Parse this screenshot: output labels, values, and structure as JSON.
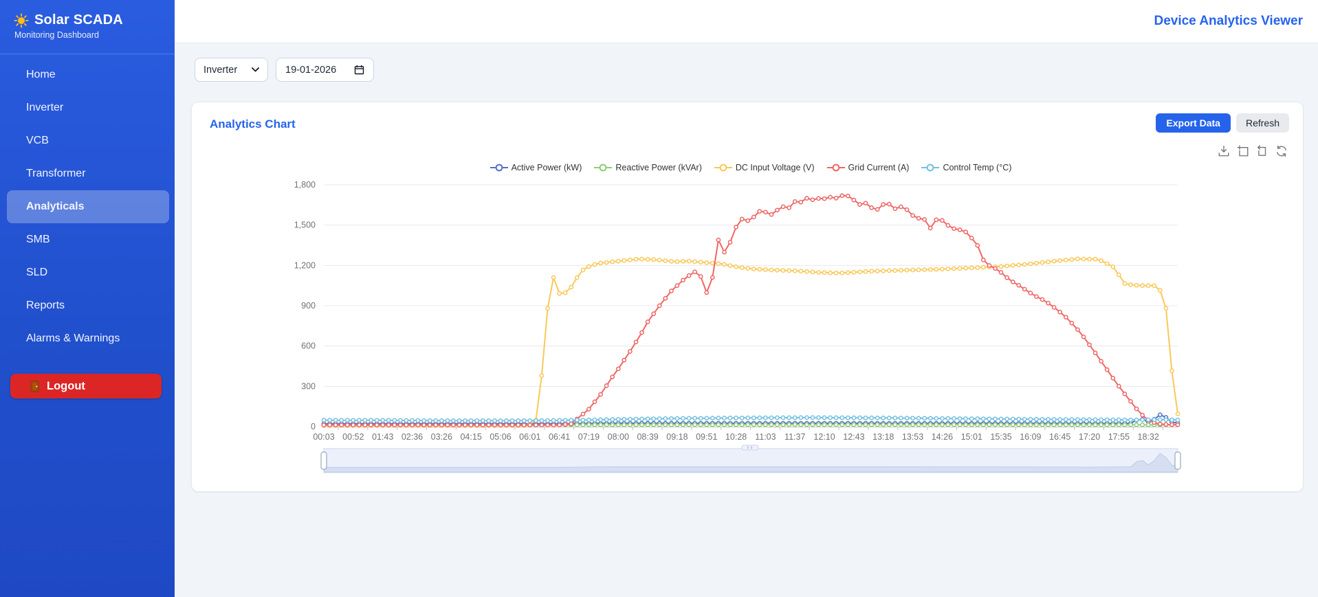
{
  "brand": {
    "title": "Solar SCADA",
    "subtitle": "Monitoring Dashboard",
    "logo_icon": "sun-icon"
  },
  "header": {
    "title": "Device Analytics Viewer"
  },
  "sidebar": {
    "items": [
      {
        "label": "Home"
      },
      {
        "label": "Inverter"
      },
      {
        "label": "VCB"
      },
      {
        "label": "Transformer"
      },
      {
        "label": "Analyticals"
      },
      {
        "label": "SMB"
      },
      {
        "label": "SLD"
      },
      {
        "label": "Reports"
      },
      {
        "label": "Alarms & Warnings"
      }
    ],
    "active_item": "Analyticals",
    "logout": {
      "label": "Logout",
      "icon": "door-icon",
      "color": "#dc2626"
    }
  },
  "filters": {
    "device_select": {
      "value": "Inverter",
      "icon": "chevron-down-icon"
    },
    "date_input": {
      "value": "19-01-2026",
      "icon": "calendar-icon"
    }
  },
  "card": {
    "title": "Analytics Chart",
    "export_button": "Export Data",
    "refresh_button": "Refresh",
    "toolbox_icons": [
      "save-image-icon",
      "zoom-select-icon",
      "zoom-reset-icon",
      "restore-icon"
    ],
    "accent_color": "#2563eb"
  },
  "chart_data": {
    "type": "line",
    "title": "",
    "xlabel": "",
    "ylabel": "",
    "ylim": [
      0,
      1800
    ],
    "y_ticks": [
      0,
      300,
      600,
      900,
      1200,
      1500,
      1800
    ],
    "y_tick_labels": [
      "0",
      "300",
      "600",
      "900",
      "1,200",
      "1,500",
      "1,800"
    ],
    "x_tick_labels": [
      "00:03",
      "00:52",
      "01:43",
      "02:36",
      "03:26",
      "04:15",
      "05:06",
      "06:01",
      "06:41",
      "07:19",
      "08:00",
      "08:39",
      "09:18",
      "09:51",
      "10:28",
      "11:03",
      "11:37",
      "12:10",
      "12:43",
      "13:18",
      "13:53",
      "14:26",
      "15:01",
      "15:35",
      "16:09",
      "16:45",
      "17:20",
      "17:55",
      "18:32"
    ],
    "grid": true,
    "legend_position": "top",
    "points_per_label_interval": 5,
    "marker": "hollow-circle",
    "datazoom_slider": {
      "present": true,
      "range": "full",
      "shadow_series": "Active Power (kW)"
    },
    "series": [
      {
        "name": "Active Power (kW)",
        "color": "#5470c6",
        "keypoints": [
          [
            0,
            22
          ],
          [
            7,
            22
          ],
          [
            8,
            22
          ],
          [
            10,
            25
          ],
          [
            14,
            25
          ],
          [
            18,
            25
          ],
          [
            22,
            24
          ],
          [
            26,
            23
          ],
          [
            27.4,
            24
          ],
          [
            27.55,
            28
          ],
          [
            27.7,
            88
          ],
          [
            27.85,
            38
          ],
          [
            28.0,
            34
          ],
          [
            28.15,
            36
          ],
          [
            28.3,
            90
          ],
          [
            28.55,
            86
          ],
          [
            28.7,
            34
          ],
          [
            29,
            28
          ]
        ]
      },
      {
        "name": "Reactive Power (kVAr)",
        "color": "#91cc75",
        "keypoints": [
          [
            0,
            10
          ],
          [
            7,
            10
          ],
          [
            8,
            11
          ],
          [
            8.3,
            13
          ],
          [
            12,
            14
          ],
          [
            16,
            15
          ],
          [
            20,
            15
          ],
          [
            24,
            14
          ],
          [
            28,
            13
          ],
          [
            29,
            14
          ]
        ]
      },
      {
        "name": "DC Input Voltage (V)",
        "color": "#fac858",
        "keypoints": [
          [
            0,
            8
          ],
          [
            6.9,
            8
          ],
          [
            7.3,
            60
          ],
          [
            7.5,
            700
          ],
          [
            7.75,
            1150
          ],
          [
            7.95,
            990
          ],
          [
            8.3,
            1000
          ],
          [
            8.55,
            1095
          ],
          [
            8.85,
            1180
          ],
          [
            9.3,
            1215
          ],
          [
            10,
            1232
          ],
          [
            10.7,
            1248
          ],
          [
            11.3,
            1242
          ],
          [
            11.9,
            1228
          ],
          [
            12.4,
            1232
          ],
          [
            12.9,
            1222
          ],
          [
            13.5,
            1212
          ],
          [
            14,
            1190
          ],
          [
            14.5,
            1175
          ],
          [
            15.2,
            1166
          ],
          [
            16,
            1160
          ],
          [
            16.8,
            1148
          ],
          [
            17.5,
            1143
          ],
          [
            18.2,
            1152
          ],
          [
            19,
            1160
          ],
          [
            20,
            1166
          ],
          [
            21,
            1172
          ],
          [
            22,
            1182
          ],
          [
            23,
            1192
          ],
          [
            24,
            1212
          ],
          [
            24.8,
            1232
          ],
          [
            25.6,
            1248
          ],
          [
            26.3,
            1247
          ],
          [
            26.8,
            1190
          ],
          [
            27.0,
            1130
          ],
          [
            27.2,
            1065
          ],
          [
            27.5,
            1052
          ],
          [
            28.35,
            1048
          ],
          [
            28.6,
            880
          ],
          [
            28.85,
            300
          ],
          [
            29,
            95
          ]
        ]
      },
      {
        "name": "Grid Current (A)",
        "color": "#ee6666",
        "keypoints": [
          [
            0,
            12
          ],
          [
            8,
            12
          ],
          [
            8.4,
            20
          ],
          [
            9,
            130
          ],
          [
            9.4,
            240
          ],
          [
            9.8,
            370
          ],
          [
            10,
            430
          ],
          [
            10.4,
            560
          ],
          [
            10.8,
            700
          ],
          [
            11,
            780
          ],
          [
            11.4,
            900
          ],
          [
            11.8,
            1010
          ],
          [
            12.2,
            1090
          ],
          [
            12.55,
            1150
          ],
          [
            12.75,
            1158
          ],
          [
            12.95,
            995
          ],
          [
            13.15,
            1005
          ],
          [
            13.35,
            1425
          ],
          [
            13.55,
            1285
          ],
          [
            13.75,
            1340
          ],
          [
            13.95,
            1470
          ],
          [
            14.2,
            1545
          ],
          [
            14.45,
            1530
          ],
          [
            14.7,
            1580
          ],
          [
            14.9,
            1625
          ],
          [
            15.1,
            1568
          ],
          [
            15.3,
            1590
          ],
          [
            15.55,
            1645
          ],
          [
            15.75,
            1612
          ],
          [
            15.95,
            1680
          ],
          [
            16.15,
            1660
          ],
          [
            16.35,
            1705
          ],
          [
            16.55,
            1685
          ],
          [
            16.75,
            1700
          ],
          [
            16.95,
            1692
          ],
          [
            17.15,
            1712
          ],
          [
            17.35,
            1695
          ],
          [
            17.55,
            1718
          ],
          [
            17.75,
            1722
          ],
          [
            17.95,
            1700
          ],
          [
            18.15,
            1648
          ],
          [
            18.35,
            1672
          ],
          [
            18.55,
            1638
          ],
          [
            18.75,
            1605
          ],
          [
            18.95,
            1650
          ],
          [
            19.15,
            1665
          ],
          [
            19.4,
            1622
          ],
          [
            19.65,
            1640
          ],
          [
            19.9,
            1598
          ],
          [
            20.1,
            1545
          ],
          [
            20.35,
            1558
          ],
          [
            20.6,
            1478
          ],
          [
            20.85,
            1555
          ],
          [
            21.05,
            1528
          ],
          [
            21.3,
            1478
          ],
          [
            21.6,
            1465
          ],
          [
            21.85,
            1445
          ],
          [
            22.05,
            1390
          ],
          [
            22.25,
            1335
          ],
          [
            22.45,
            1210
          ],
          [
            22.7,
            1192
          ],
          [
            23,
            1148
          ],
          [
            23.3,
            1090
          ],
          [
            23.6,
            1052
          ],
          [
            23.9,
            1008
          ],
          [
            24.2,
            968
          ],
          [
            24.5,
            935
          ],
          [
            24.9,
            872
          ],
          [
            25.3,
            795
          ],
          [
            25.7,
            698
          ],
          [
            26.1,
            580
          ],
          [
            26.5,
            455
          ],
          [
            26.9,
            330
          ],
          [
            27.3,
            215
          ],
          [
            27.7,
            105
          ],
          [
            28,
            48
          ],
          [
            28.3,
            22
          ],
          [
            28.6,
            16
          ],
          [
            29,
            14
          ]
        ]
      },
      {
        "name": "Control Temp (°C)",
        "color": "#73c0de",
        "keypoints": [
          [
            0,
            48
          ],
          [
            2,
            47
          ],
          [
            4,
            45
          ],
          [
            6,
            44
          ],
          [
            7.5,
            45
          ],
          [
            9,
            50
          ],
          [
            10.5,
            56
          ],
          [
            12,
            61
          ],
          [
            13.5,
            64
          ],
          [
            15,
            66
          ],
          [
            16.5,
            67
          ],
          [
            18,
            66
          ],
          [
            19.5,
            64
          ],
          [
            21,
            61
          ],
          [
            22.5,
            58
          ],
          [
            24,
            55
          ],
          [
            25.5,
            53
          ],
          [
            26.5,
            51
          ],
          [
            27.5,
            50
          ],
          [
            28.3,
            52
          ],
          [
            29,
            50
          ]
        ]
      }
    ]
  }
}
